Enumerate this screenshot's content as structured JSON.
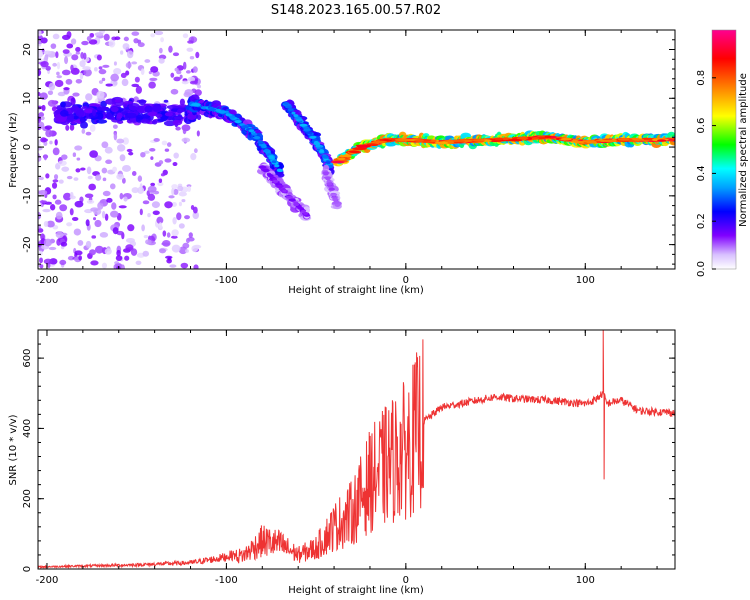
{
  "figure": {
    "title": "S148.2023.165.00.57.R02"
  },
  "chart_data": [
    {
      "type": "heatmap",
      "xlabel": "Height of straight line (km)",
      "ylabel": "Frequency (Hz)",
      "xlim": [
        -205,
        150
      ],
      "ylim": [
        -25,
        24
      ],
      "xticks": [
        -200,
        -100,
        0,
        100
      ],
      "yticks": [
        -20,
        -10,
        0,
        10,
        20
      ],
      "tick_labels_x": [
        "-200",
        "-100",
        "0",
        "100"
      ],
      "tick_labels_y": [
        "-20",
        "-10",
        "0",
        "10",
        "20"
      ],
      "colorbar": {
        "label": "Normalized spectral amplitude",
        "range": [
          0,
          1
        ],
        "ticks": [
          "0.0",
          "0.2",
          "0.4",
          "0.6",
          "0.8"
        ],
        "tick_values": [
          0,
          0.2,
          0.4,
          0.6,
          0.8
        ],
        "colormap": "rainbow"
      },
      "features": [
        {
          "name": "scatter",
          "x": [
            -205,
            -115
          ],
          "y": [
            -25,
            24
          ],
          "amplitude": 0.1
        },
        {
          "name": "band",
          "x": [
            -195,
            -115
          ],
          "y": [
            6,
            8
          ],
          "amplitude": 0.15
        },
        {
          "name": "ridge",
          "x": [
            -120,
            -100,
            -85,
            -75,
            -70
          ],
          "y": [
            9,
            7,
            3,
            -2,
            -5
          ],
          "amplitude": 0.35
        },
        {
          "name": "ridge",
          "x": [
            -67,
            -58,
            -50,
            -45,
            -42
          ],
          "y": [
            9,
            5,
            1,
            -2,
            -4
          ],
          "amplitude": 0.35
        },
        {
          "name": "ridge",
          "x": [
            -80,
            -68,
            -55
          ],
          "y": [
            -4,
            -9,
            -14
          ],
          "amplitude": 0.15
        },
        {
          "name": "ridge",
          "x": [
            -45,
            -38
          ],
          "y": [
            -5,
            -12
          ],
          "amplitude": 0.12
        },
        {
          "name": "ridge",
          "x": [
            -38,
            -25,
            -10,
            0,
            20,
            50,
            80,
            100,
            120,
            150
          ],
          "y": [
            -3,
            0,
            1.5,
            1.5,
            1,
            1.5,
            2,
            1,
            1.5,
            1.5
          ],
          "amplitude": 0.9
        }
      ]
    },
    {
      "type": "line",
      "xlabel": "Height of straight line (km)",
      "ylabel": "SNR (10 * v/v)",
      "xlim": [
        -205,
        150
      ],
      "ylim": [
        0,
        680
      ],
      "xticks": [
        -200,
        -100,
        0,
        100
      ],
      "yticks": [
        0,
        200,
        400,
        600
      ],
      "tick_labels_x": [
        "-200",
        "-100",
        "0",
        "100"
      ],
      "tick_labels_y": [
        "0",
        "200",
        "400",
        "600"
      ],
      "color": "#ee3333",
      "x": [
        -205,
        -150,
        -120,
        -105,
        -90,
        -80,
        -70,
        -60,
        -50,
        -40,
        -30,
        -20,
        -10,
        0,
        10,
        20,
        30,
        40,
        50,
        60,
        80,
        100,
        105,
        110,
        112,
        115,
        120,
        130,
        150
      ],
      "y": [
        5,
        10,
        15,
        25,
        40,
        80,
        70,
        40,
        60,
        120,
        160,
        250,
        300,
        340,
        420,
        460,
        470,
        480,
        490,
        485,
        480,
        470,
        480,
        500,
        470,
        475,
        480,
        450,
        445
      ],
      "spikes": [
        {
          "x": 110,
          "y": 680
        },
        {
          "x": 110.5,
          "y": 255
        }
      ]
    }
  ]
}
